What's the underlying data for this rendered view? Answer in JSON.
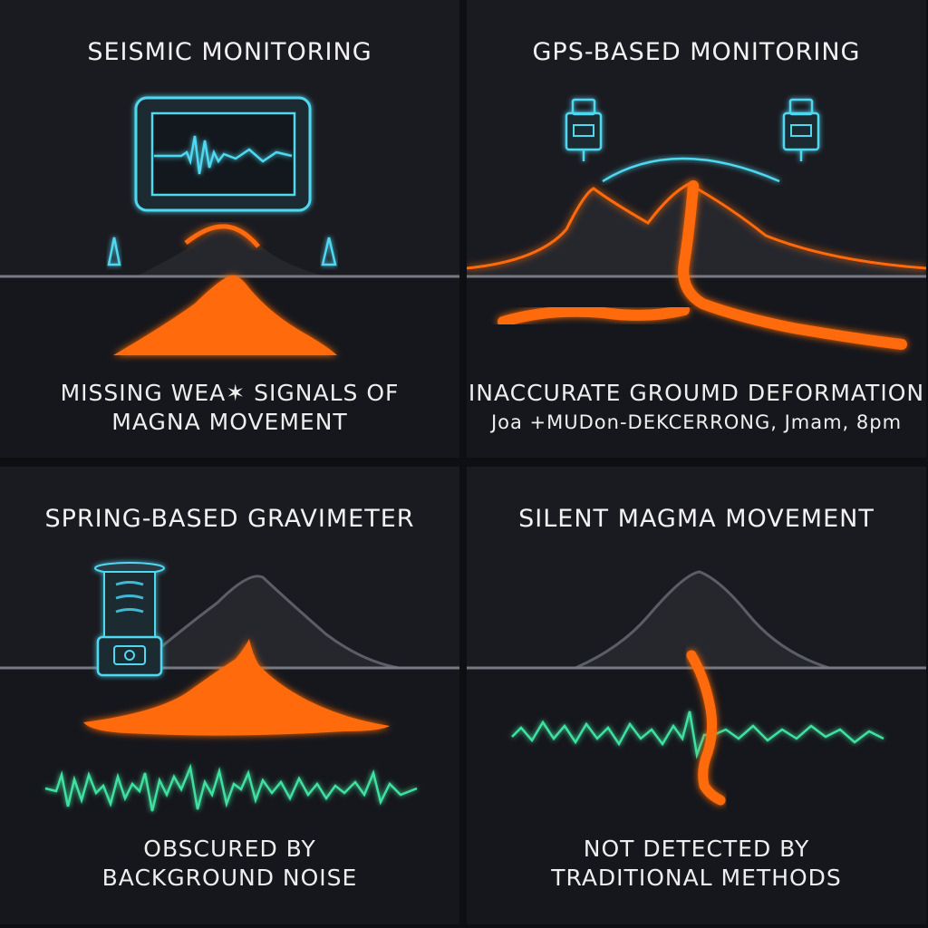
{
  "panels": [
    {
      "title": "SEISMIC MONITORING",
      "caption_line1": "MISSING WEA✶ SIGNALS OF",
      "caption_line2": "MAGNA MOVEMENT"
    },
    {
      "title": "GPS-BASED MONITORING",
      "caption_line1": "INACCURATE GROUMD DEFORMATION",
      "caption_line2": "Joa +MUDon-DEKCERRONG, Jmam, 8pm"
    },
    {
      "title": "SPRING-BASED GRAVIMETER",
      "caption_line1": "OBSCURED BY",
      "caption_line2": "BACKGROUND NOISE"
    },
    {
      "title": "SILENT MAGMA MOVEMENT",
      "caption_line1": "NOT DETECTED BY",
      "caption_line2": "TRADITIONAL METHODS"
    }
  ],
  "colors": {
    "magma": "#ff6a10",
    "sensor": "#4fd8f0",
    "noise": "#3fe0a0",
    "ground": "#777a82",
    "mountain": "#26272d"
  }
}
